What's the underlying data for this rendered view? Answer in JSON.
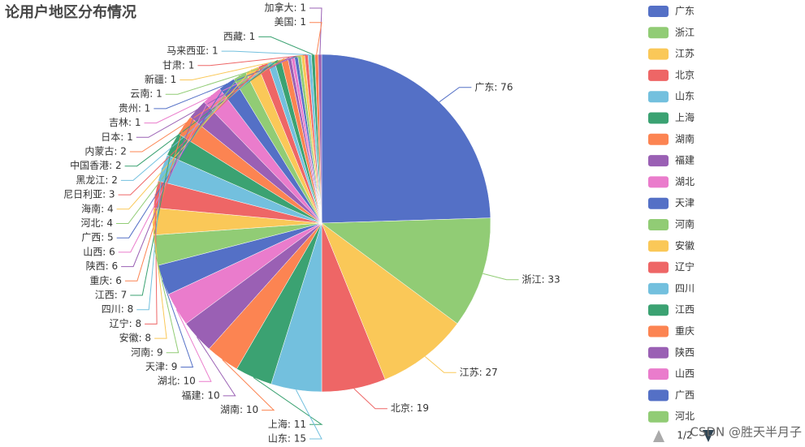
{
  "chart_data": {
    "type": "pie",
    "title": "论用户地区分布情况",
    "categories": [
      "广东",
      "浙江",
      "江苏",
      "北京",
      "山东",
      "上海",
      "湖南",
      "福建",
      "湖北",
      "天津",
      "河南",
      "安徽",
      "辽宁",
      "四川",
      "江西",
      "重庆",
      "陕西",
      "山西",
      "广西",
      "河北",
      "海南",
      "尼日利亚",
      "黑龙江",
      "中国香港",
      "内蒙古",
      "日本",
      "吉林",
      "贵州",
      "云南",
      "新疆",
      "甘肃",
      "马来西亚",
      "西藏",
      "美国",
      "加拿大"
    ],
    "values": [
      76,
      33,
      27,
      19,
      15,
      11,
      10,
      10,
      10,
      9,
      9,
      8,
      8,
      8,
      7,
      6,
      6,
      6,
      5,
      4,
      4,
      3,
      2,
      2,
      2,
      1,
      1,
      1,
      1,
      1,
      1,
      1,
      1,
      1,
      1
    ],
    "value_labels": [
      "广东: 76",
      "浙江: 33",
      "江苏: 27",
      "北京: 19",
      "山东: 15",
      "上海: 11",
      "湖南: 10",
      "福建: 10",
      "湖北: 10",
      "天津: 9",
      "河南: 9",
      "安徽: 8",
      "辽宁: 8",
      "四川: 8",
      "江西: 7",
      "重庆: 6",
      "陕西: 6",
      "山西: 6",
      "广西: 5",
      "河北: 4",
      "海南: 4",
      "尼日利亚: 3",
      "黑龙江: 2",
      "中国香港: 2",
      "内蒙古: 2",
      "日本: 1",
      "吉林: 1",
      "贵州: 1",
      "云南: 1",
      "新疆: 1",
      "甘肃: 1",
      "马来西亚: 1",
      "西藏: 1",
      "美国: 1",
      "加拿大: 1"
    ],
    "colors": [
      "#5470c6",
      "#91cc75",
      "#fac858",
      "#ee6666",
      "#73c0de",
      "#3ba272",
      "#fc8452",
      "#9a60b4",
      "#ea7ccc"
    ],
    "legend_page": "1/2",
    "watermark": "CSDN @胜天半月子"
  }
}
